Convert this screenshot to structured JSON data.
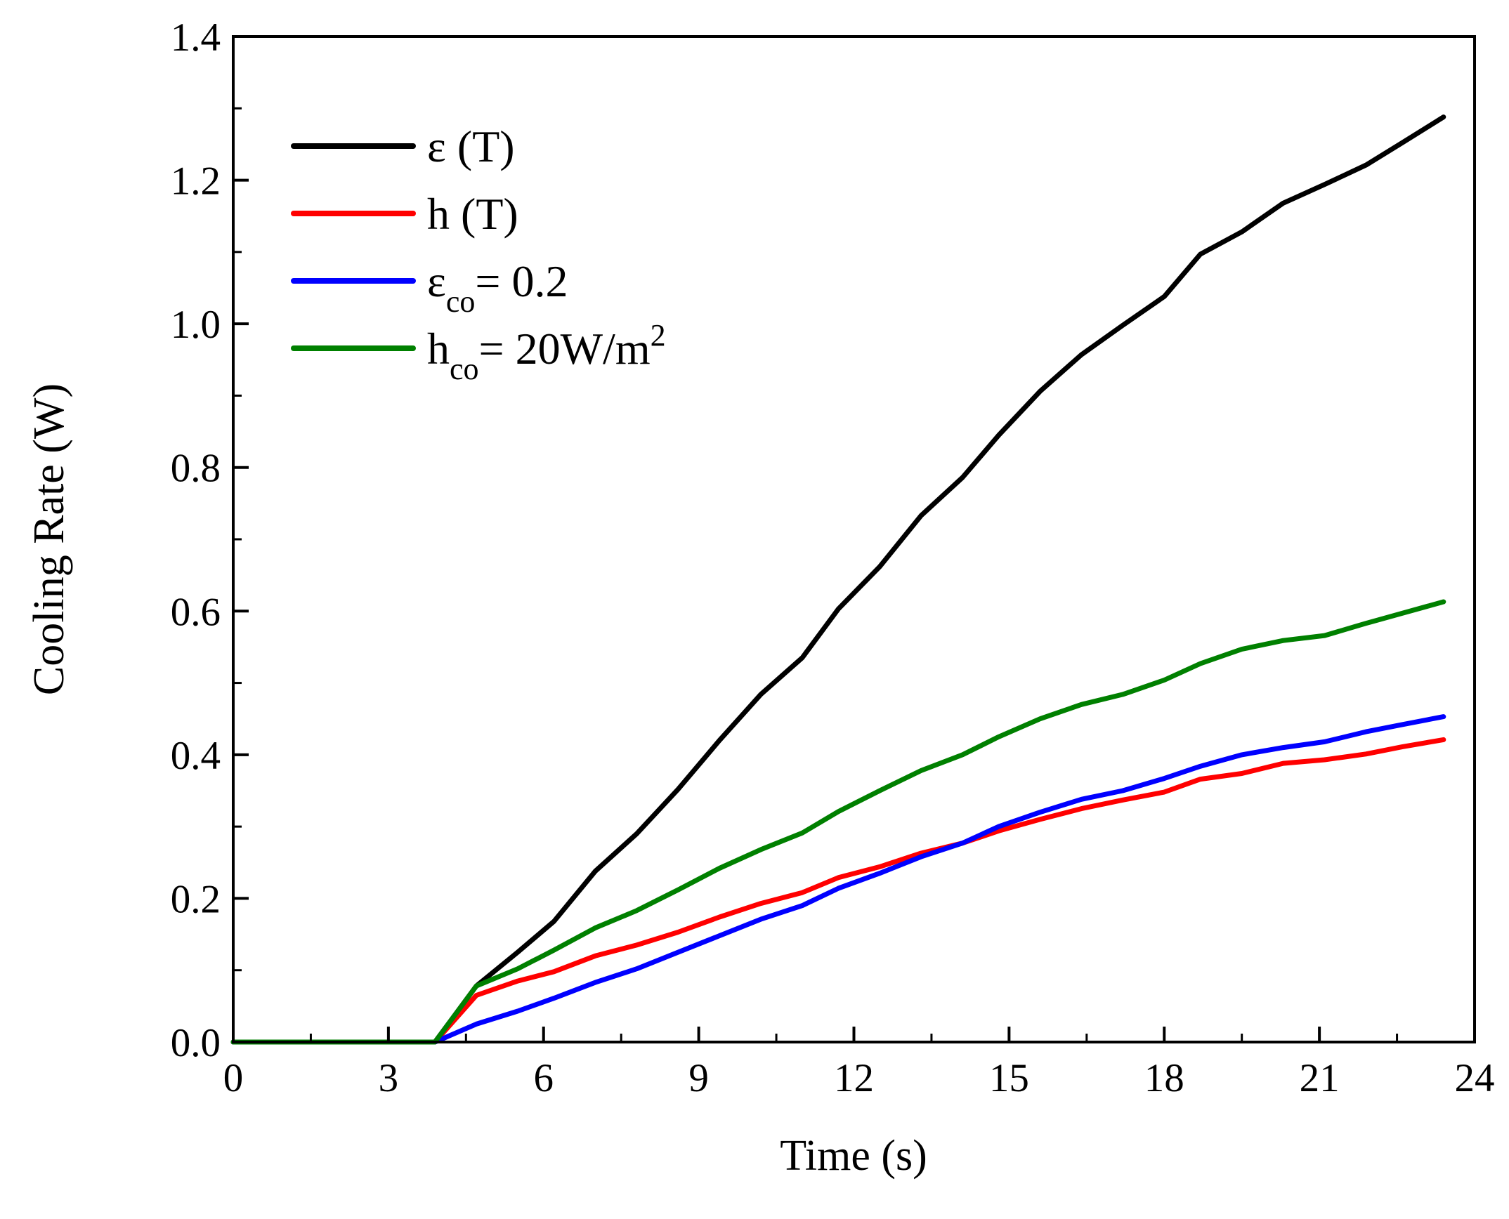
{
  "chart_data": {
    "type": "line",
    "title": "",
    "xlabel": "Time (s)",
    "ylabel": "Cooling Rate (W)",
    "xlim": [
      0,
      24
    ],
    "ylim": [
      0,
      1.4
    ],
    "xticks": [
      0,
      3,
      6,
      9,
      12,
      15,
      18,
      21,
      24
    ],
    "xtick_labels": [
      "0",
      "3",
      "6",
      "9",
      "12",
      "15",
      "18",
      "21",
      "24"
    ],
    "yticks": [
      0,
      0.2,
      0.4,
      0.6,
      0.8,
      1.0,
      1.2,
      1.4
    ],
    "ytick_labels": [
      "0.0",
      "0.2",
      "0.4",
      "0.6",
      "0.8",
      "1.0",
      "1.2",
      "1.4"
    ],
    "grid": false,
    "legend_position": "top-left",
    "series": [
      {
        "name": "ε (T)",
        "legend": {
          "main": "ε (T)",
          "sub": "",
          "rest": "",
          "sup": ""
        },
        "color": "#000000",
        "x": [
          0,
          3.9,
          4.7,
          5.5,
          6.2,
          7.0,
          7.8,
          8.6,
          9.4,
          10.2,
          11.0,
          11.7,
          12.5,
          13.3,
          14.1,
          14.8,
          15.6,
          16.4,
          17.2,
          18.0,
          18.7,
          19.5,
          20.3,
          21.1,
          21.9,
          22.6,
          23.4
        ],
        "y": [
          0,
          0,
          0.078,
          0.125,
          0.168,
          0.238,
          0.29,
          0.352,
          0.42,
          0.484,
          0.535,
          0.603,
          0.662,
          0.733,
          0.786,
          0.845,
          0.906,
          0.957,
          0.998,
          1.038,
          1.097,
          1.128,
          1.168,
          1.194,
          1.221,
          1.252,
          1.288
        ]
      },
      {
        "name": "h (T)",
        "legend": {
          "main": "h (T)",
          "sub": "",
          "rest": "",
          "sup": ""
        },
        "color": "#ff0000",
        "x": [
          0,
          3.9,
          4.7,
          5.5,
          6.2,
          7.0,
          7.8,
          8.6,
          9.4,
          10.2,
          11.0,
          11.7,
          12.5,
          13.3,
          14.1,
          14.8,
          15.6,
          16.4,
          17.2,
          18.0,
          18.7,
          19.5,
          20.3,
          21.1,
          21.9,
          22.6,
          23.4
        ],
        "y": [
          0,
          0,
          0.065,
          0.085,
          0.098,
          0.12,
          0.135,
          0.153,
          0.174,
          0.193,
          0.208,
          0.229,
          0.244,
          0.263,
          0.277,
          0.294,
          0.31,
          0.325,
          0.337,
          0.348,
          0.366,
          0.374,
          0.388,
          0.393,
          0.401,
          0.411,
          0.421
        ]
      },
      {
        "name": "εco= 0.2",
        "legend": {
          "main": "ε",
          "sub": "co",
          "rest": "= 0.2",
          "sup": ""
        },
        "color": "#0000ff",
        "x": [
          0,
          3.9,
          4.7,
          5.5,
          6.2,
          7.0,
          7.8,
          8.6,
          9.4,
          10.2,
          11.0,
          11.7,
          12.5,
          13.3,
          14.1,
          14.8,
          15.6,
          16.4,
          17.2,
          18.0,
          18.7,
          19.5,
          20.3,
          21.1,
          21.9,
          22.6,
          23.4
        ],
        "y": [
          0,
          0,
          0.025,
          0.043,
          0.061,
          0.083,
          0.102,
          0.125,
          0.148,
          0.171,
          0.19,
          0.214,
          0.235,
          0.258,
          0.277,
          0.3,
          0.32,
          0.338,
          0.35,
          0.367,
          0.384,
          0.4,
          0.41,
          0.418,
          0.432,
          0.442,
          0.453
        ]
      },
      {
        "name": "hco= 20W/m2",
        "legend": {
          "main": "h",
          "sub": "co",
          "rest": "= 20W/m",
          "sup": "2"
        },
        "color": "#008000",
        "x": [
          0,
          3.9,
          4.7,
          5.5,
          6.2,
          7.0,
          7.8,
          8.6,
          9.4,
          10.2,
          11.0,
          11.7,
          12.5,
          13.3,
          14.1,
          14.8,
          15.6,
          16.4,
          17.2,
          18.0,
          18.7,
          19.5,
          20.3,
          21.1,
          21.9,
          22.6,
          23.4
        ],
        "y": [
          0,
          0,
          0.078,
          0.102,
          0.128,
          0.159,
          0.183,
          0.212,
          0.242,
          0.268,
          0.291,
          0.321,
          0.35,
          0.378,
          0.4,
          0.425,
          0.45,
          0.47,
          0.484,
          0.504,
          0.527,
          0.547,
          0.559,
          0.566,
          0.583,
          0.597,
          0.613
        ]
      }
    ]
  }
}
